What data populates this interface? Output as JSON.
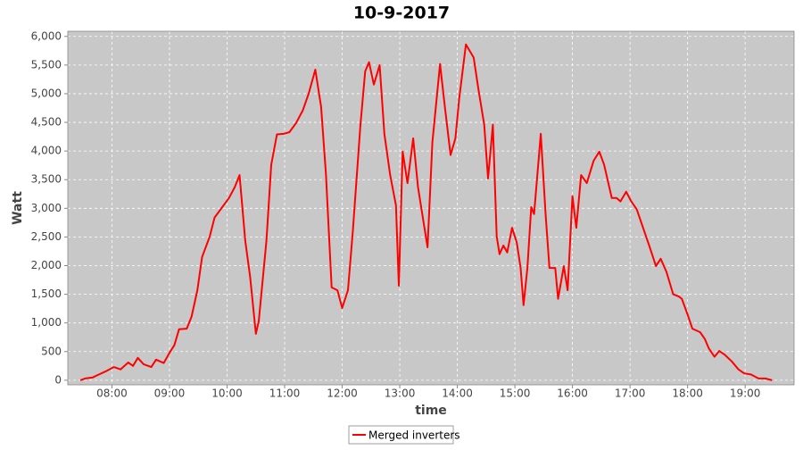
{
  "chart_data": {
    "type": "line",
    "title": "10-9-2017",
    "xlabel": "time",
    "ylabel": "Watt",
    "x": [
      "07:27",
      "07:32",
      "07:40",
      "07:45",
      "07:53",
      "08:02",
      "08:09",
      "08:17",
      "08:22",
      "08:27",
      "08:33",
      "08:41",
      "08:46",
      "08:54",
      "09:00",
      "09:05",
      "09:10",
      "09:18",
      "09:23",
      "09:29",
      "09:34",
      "09:42",
      "09:47",
      "09:55",
      "10:02",
      "10:08",
      "10:13",
      "10:19",
      "10:24",
      "10:30",
      "10:33",
      "10:41",
      "10:46",
      "10:52",
      "10:59",
      "11:05",
      "11:12",
      "11:19",
      "11:25",
      "11:32",
      "11:38",
      "11:43",
      "11:49",
      "11:55",
      "12:00",
      "12:06",
      "12:11",
      "12:19",
      "12:24",
      "12:28",
      "12:33",
      "12:39",
      "12:44",
      "12:50",
      "12:56",
      "12:59",
      "13:03",
      "13:08",
      "13:14",
      "13:19",
      "13:25",
      "13:29",
      "13:34",
      "13:42",
      "13:47",
      "13:53",
      "13:58",
      "14:02",
      "14:09",
      "14:17",
      "14:22",
      "14:28",
      "14:32",
      "14:37",
      "14:41",
      "14:44",
      "14:48",
      "14:52",
      "14:57",
      "15:02",
      "15:06",
      "15:09",
      "15:13",
      "15:17",
      "15:20",
      "15:27",
      "15:32",
      "15:36",
      "15:42",
      "15:45",
      "15:51",
      "15:55",
      "16:00",
      "16:04",
      "16:09",
      "16:15",
      "16:22",
      "16:28",
      "16:33",
      "16:41",
      "16:46",
      "16:50",
      "16:56",
      "17:01",
      "17:07",
      "17:12",
      "17:20",
      "17:27",
      "17:32",
      "17:38",
      "17:45",
      "17:51",
      "17:54",
      "18:00",
      "18:05",
      "18:13",
      "18:18",
      "18:22",
      "18:28",
      "18:33",
      "18:39",
      "18:46",
      "18:53",
      "18:59",
      "19:06",
      "19:14",
      "19:21",
      "19:28"
    ],
    "series": [
      {
        "name": "Merged inverters",
        "color": "#ff0000",
        "values": [
          0,
          30,
          50,
          90,
          150,
          230,
          190,
          310,
          250,
          390,
          280,
          230,
          360,
          300,
          480,
          610,
          890,
          900,
          1110,
          1570,
          2150,
          2510,
          2840,
          3020,
          3180,
          3370,
          3580,
          2430,
          1810,
          810,
          1030,
          2430,
          3760,
          4290,
          4300,
          4330,
          4490,
          4710,
          5000,
          5420,
          4770,
          3600,
          1620,
          1570,
          1260,
          1570,
          2590,
          4460,
          5390,
          5550,
          5160,
          5500,
          4300,
          3580,
          3050,
          1650,
          3990,
          3440,
          4220,
          3370,
          2740,
          2320,
          4150,
          5520,
          4770,
          3930,
          4220,
          4920,
          5860,
          5630,
          5080,
          4460,
          3520,
          4460,
          2510,
          2200,
          2350,
          2230,
          2660,
          2400,
          1960,
          1310,
          1960,
          3020,
          2900,
          4300,
          2900,
          1960,
          1960,
          1420,
          1990,
          1570,
          3210,
          2660,
          3580,
          3440,
          3830,
          3990,
          3760,
          3180,
          3180,
          3120,
          3290,
          3130,
          2980,
          2740,
          2350,
          1990,
          2120,
          1890,
          1500,
          1460,
          1420,
          1150,
          900,
          840,
          720,
          560,
          410,
          510,
          440,
          330,
          190,
          120,
          100,
          30,
          30,
          0
        ]
      }
    ],
    "xlim": [
      "07:14",
      "19:51"
    ],
    "xticks": [
      "08:00",
      "09:00",
      "10:00",
      "11:00",
      "12:00",
      "13:00",
      "14:00",
      "15:00",
      "16:00",
      "17:00",
      "18:00",
      "19:00"
    ],
    "ylim": [
      -80,
      6090
    ],
    "yticks": [
      0,
      {
        "value": 500,
        "label": "500"
      },
      {
        "value": 1000,
        "label": "1,000"
      },
      {
        "value": 1500,
        "label": "1,500"
      },
      {
        "value": 2000,
        "label": "2,000"
      },
      {
        "value": 2500,
        "label": "2,500"
      },
      {
        "value": 3000,
        "label": "3,000"
      },
      {
        "value": 3500,
        "label": "3,500"
      },
      {
        "value": 4000,
        "label": "4,000"
      },
      {
        "value": 4500,
        "label": "4,500"
      },
      {
        "value": 5000,
        "label": "5,000"
      },
      {
        "value": 5500,
        "label": "5,500"
      },
      {
        "value": 6000,
        "label": "6,000"
      }
    ],
    "grid": true,
    "legend": "bottom"
  }
}
